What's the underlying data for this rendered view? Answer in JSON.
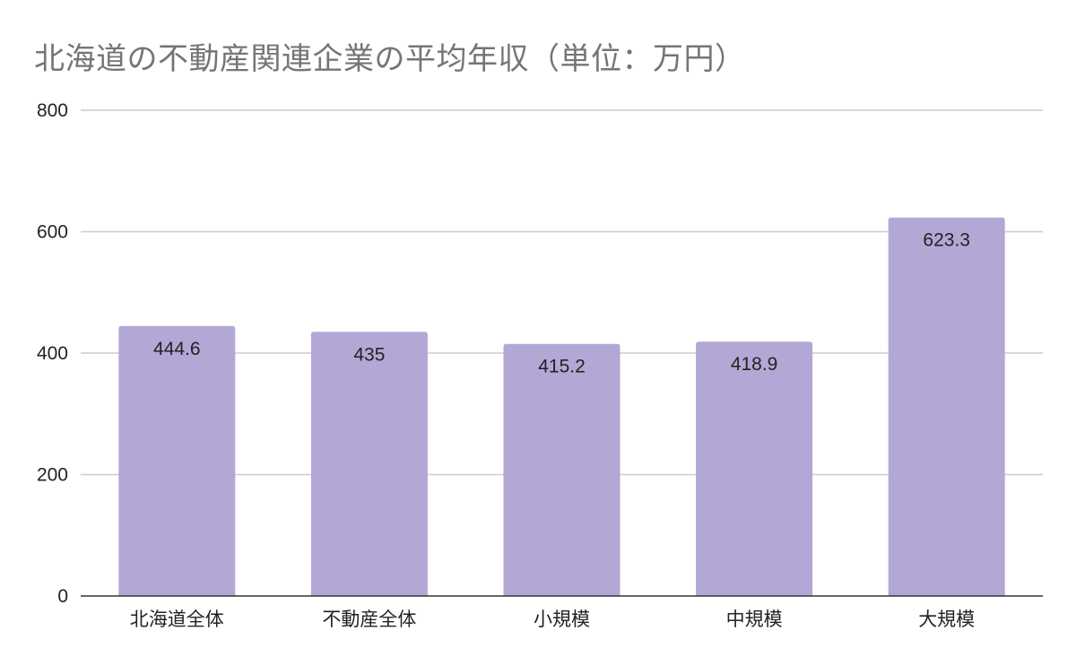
{
  "chart_data": {
    "type": "bar",
    "title": "北海道の不動産関連企業の平均年収（単位：万円）",
    "xlabel": "",
    "ylabel": "",
    "categories": [
      "北海道全体",
      "不動産全体",
      "小規模",
      "中規模",
      "大規模"
    ],
    "values": [
      444.6,
      435,
      415.2,
      418.9,
      623.3
    ],
    "value_labels": [
      "444.6",
      "435",
      "415.2",
      "418.9",
      "623.3"
    ],
    "ylim": [
      0,
      800
    ],
    "yticks": [
      0,
      200,
      400,
      600,
      800
    ],
    "ytick_labels": [
      "0",
      "200",
      "400",
      "600",
      "800"
    ],
    "grid": true,
    "legend": "none",
    "colors": {
      "bar": "#b3a7d5",
      "grid": "#cccccc",
      "axis": "#333333",
      "title": "#757575"
    }
  }
}
